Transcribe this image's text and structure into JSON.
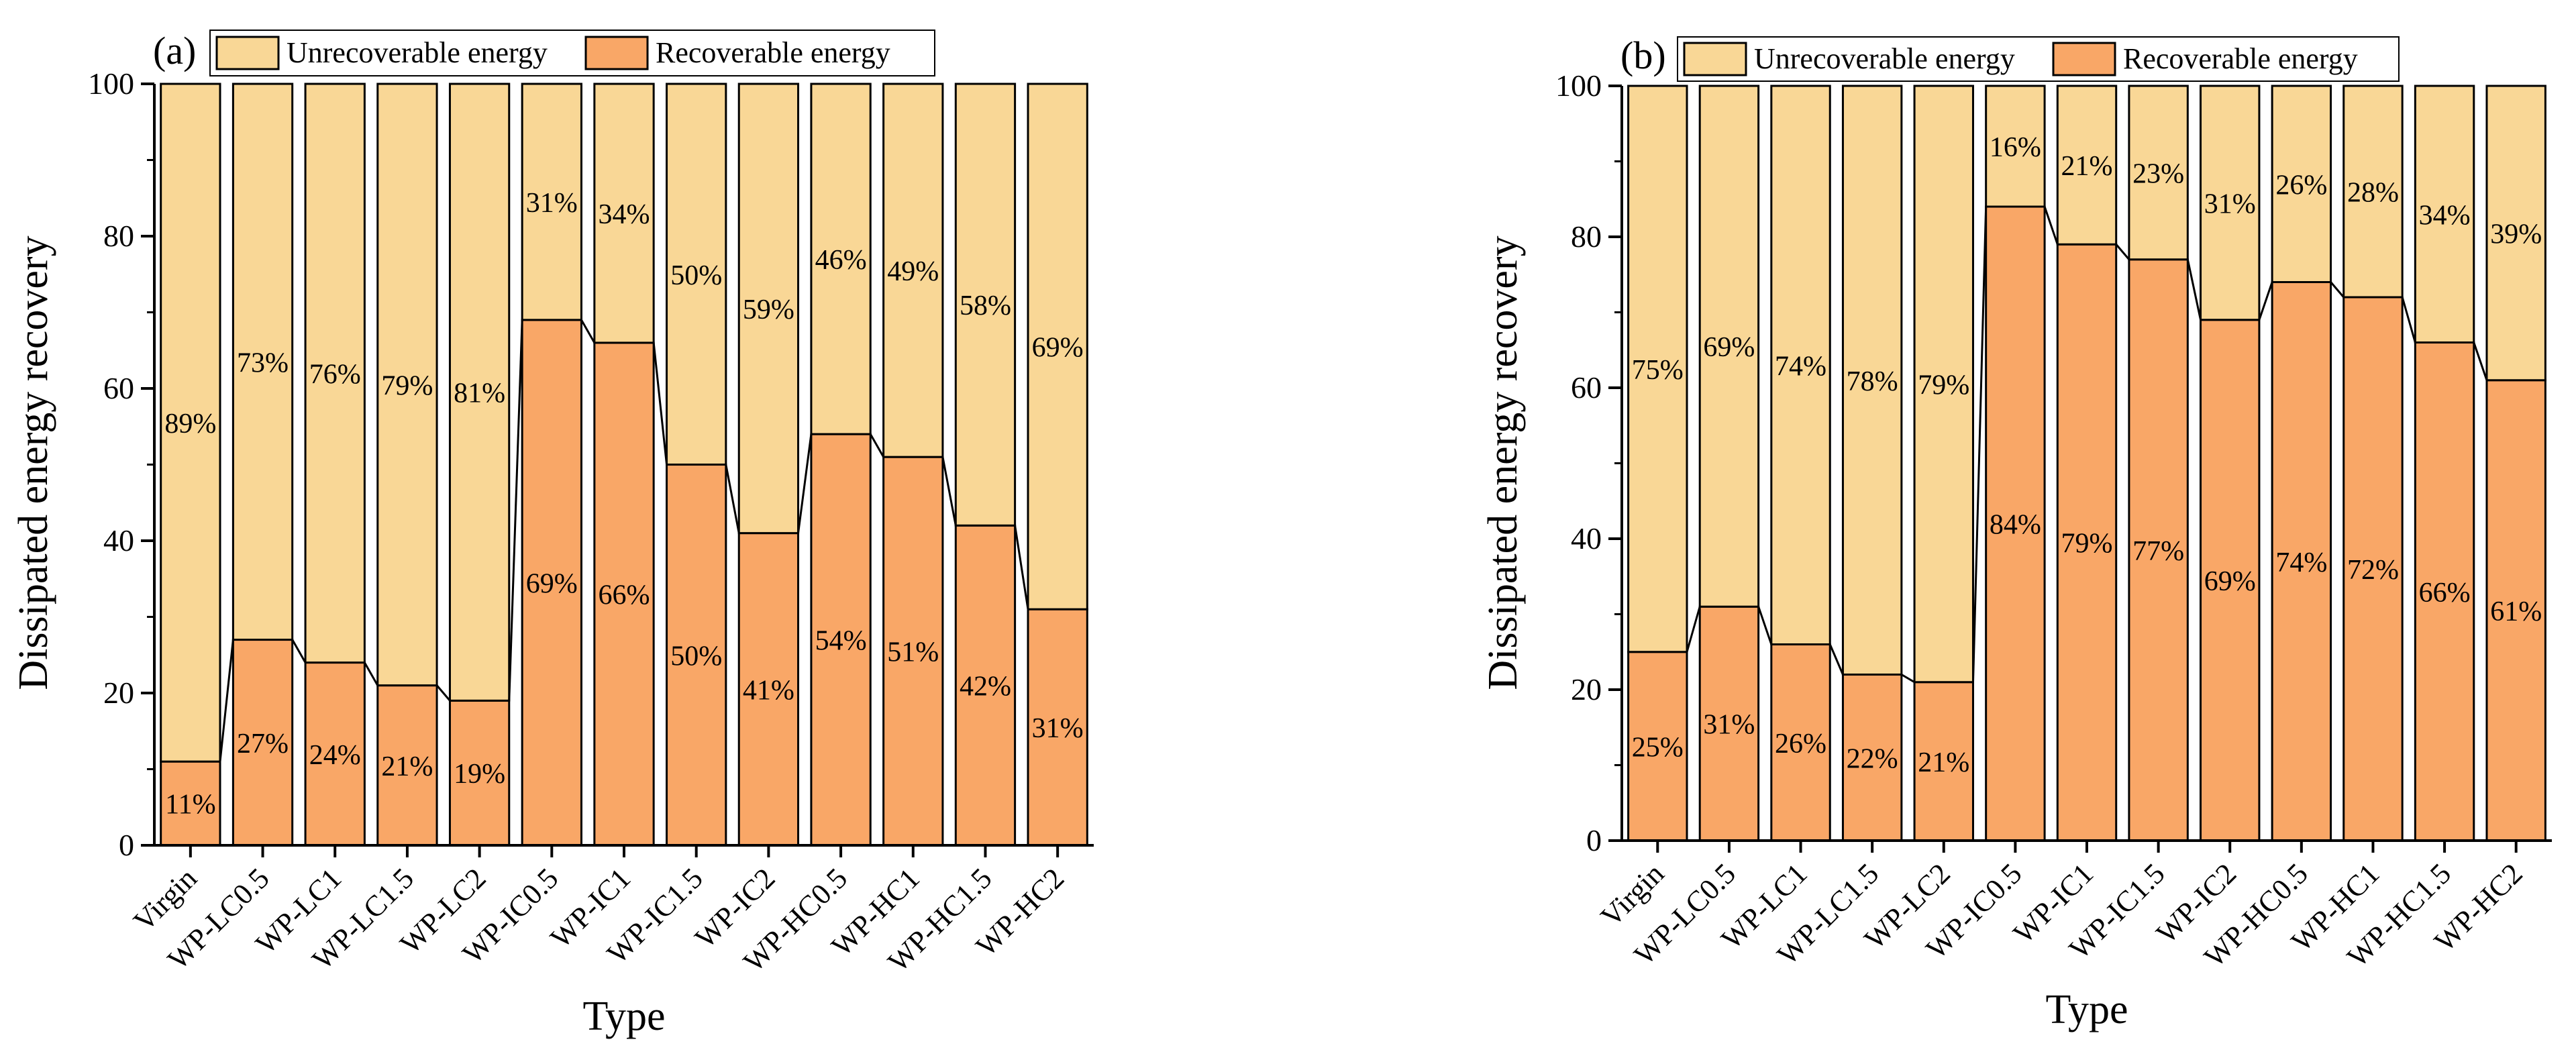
{
  "legend": {
    "unrecoverable": "Unrecoverable energy",
    "recoverable": "Recoverable energy"
  },
  "colors": {
    "unrecoverable": "#f9d796",
    "recoverable": "#f9a767",
    "axis": "#000000"
  },
  "chart_data": [
    {
      "type": "bar",
      "stacked": true,
      "panel": "(a)",
      "title": "",
      "xlabel": "Type",
      "ylabel": "Dissipated energy recovery",
      "ylim": [
        0,
        100
      ],
      "yticks": [
        "0",
        "20",
        "40",
        "60",
        "80",
        "100"
      ],
      "categories": [
        "Virgin",
        "WP-LC0.5",
        "WP-LC1",
        "WP-LC1.5",
        "WP-LC2",
        "WP-IC0.5",
        "WP-IC1",
        "WP-IC1.5",
        "WP-IC2",
        "WP-HC0.5",
        "WP-HC1",
        "WP-HC1.5",
        "WP-HC2"
      ],
      "series": [
        {
          "name": "Recoverable energy",
          "values": [
            11,
            27,
            24,
            21,
            19,
            69,
            66,
            50,
            41,
            54,
            51,
            42,
            31
          ],
          "labels": [
            "11%",
            "27%",
            "24%",
            "21%",
            "19%",
            "69%",
            "66%",
            "50%",
            "41%",
            "54%",
            "51%",
            "42%",
            "31%"
          ]
        },
        {
          "name": "Unrecoverable energy",
          "values": [
            89,
            73,
            76,
            79,
            81,
            31,
            34,
            50,
            59,
            46,
            49,
            58,
            69
          ],
          "labels": [
            "89%",
            "73%",
            "76%",
            "79%",
            "81%",
            "31%",
            "34%",
            "50%",
            "59%",
            "46%",
            "49%",
            "58%",
            "69%"
          ]
        }
      ]
    },
    {
      "type": "bar",
      "stacked": true,
      "panel": "(b)",
      "title": "",
      "xlabel": "Type",
      "ylabel": "Dissipated energy recovery",
      "ylim": [
        0,
        100
      ],
      "yticks": [
        "0",
        "20",
        "40",
        "60",
        "80",
        "100"
      ],
      "categories": [
        "Virgin",
        "WP-LC0.5",
        "WP-LC1",
        "WP-LC1.5",
        "WP-LC2",
        "WP-IC0.5",
        "WP-IC1",
        "WP-IC1.5",
        "WP-IC2",
        "WP-HC0.5",
        "WP-HC1",
        "WP-HC1.5",
        "WP-HC2"
      ],
      "series": [
        {
          "name": "Recoverable energy",
          "values": [
            25,
            31,
            26,
            22,
            21,
            84,
            79,
            77,
            69,
            74,
            72,
            66,
            61
          ],
          "labels": [
            "25%",
            "31%",
            "26%",
            "22%",
            "21%",
            "84%",
            "79%",
            "77%",
            "69%",
            "74%",
            "72%",
            "66%",
            "61%"
          ]
        },
        {
          "name": "Unrecoverable energy",
          "values": [
            75,
            69,
            74,
            78,
            79,
            16,
            21,
            23,
            31,
            26,
            28,
            34,
            39
          ],
          "labels": [
            "75%",
            "69%",
            "74%",
            "78%",
            "79%",
            "16%",
            "21%",
            "23%",
            "31%",
            "26%",
            "28%",
            "34%",
            "39%"
          ]
        }
      ]
    }
  ]
}
